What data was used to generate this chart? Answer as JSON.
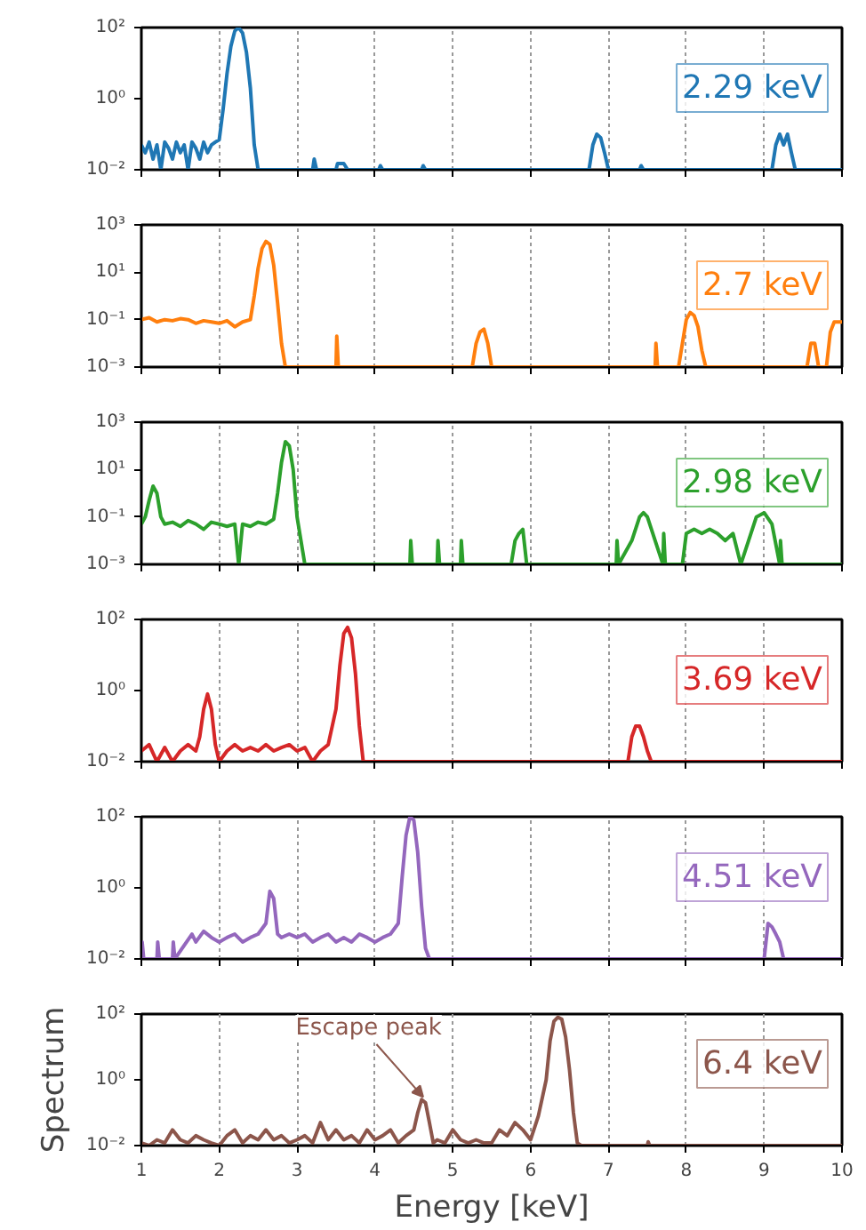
{
  "chart_data": [
    {
      "type": "line",
      "log": "y",
      "grid": "x",
      "tick_labels": "y",
      "xlim": [
        1,
        10
      ],
      "xticks": [
        1,
        2,
        3,
        4,
        5,
        6,
        7,
        8,
        9,
        10
      ],
      "ylim": [
        0.01,
        100
      ],
      "yticks": [
        {
          "value": 0.01,
          "label": "10⁻²"
        },
        {
          "value": 1,
          "label": "10⁰"
        },
        {
          "value": 100,
          "label": "10²"
        }
      ],
      "x": [
        1.0,
        1.05,
        1.1,
        1.15,
        1.2,
        1.25,
        1.3,
        1.35,
        1.4,
        1.45,
        1.5,
        1.55,
        1.6,
        1.65,
        1.7,
        1.75,
        1.8,
        1.85,
        1.9,
        1.95,
        2.0,
        2.05,
        2.1,
        2.15,
        2.2,
        2.25,
        2.3,
        2.35,
        2.4,
        2.45,
        2.5,
        3.2,
        3.22,
        3.25,
        3.5,
        3.52,
        3.6,
        3.65,
        4.05,
        4.07,
        4.1,
        4.6,
        4.62,
        4.65,
        6.75,
        6.8,
        6.85,
        6.9,
        6.95,
        7.0,
        7.4,
        7.42,
        7.45,
        9.1,
        9.15,
        9.2,
        9.25,
        9.3,
        9.35,
        9.4,
        10.0
      ],
      "series": [
        {
          "color": "#1f77b4",
          "values": [
            0.05,
            0.03,
            0.06,
            0.02,
            0.05,
            0.01,
            0.06,
            0.04,
            0.02,
            0.06,
            0.03,
            0.05,
            0.01,
            0.06,
            0.04,
            0.02,
            0.06,
            0.03,
            0.05,
            0.06,
            0.07,
            0.5,
            5,
            30,
            80,
            100,
            70,
            20,
            2,
            0.05,
            0.01,
            0.01,
            0.02,
            0.01,
            0.01,
            0.015,
            0.015,
            0.01,
            0.01,
            0.013,
            0.01,
            0.01,
            0.013,
            0.01,
            0.01,
            0.05,
            0.1,
            0.08,
            0.03,
            0.01,
            0.01,
            0.013,
            0.01,
            0.01,
            0.05,
            0.1,
            0.05,
            0.1,
            0.03,
            0.01,
            0.01
          ]
        }
      ],
      "annotations": [
        "2.29 keV"
      ]
    },
    {
      "type": "line",
      "log": "y",
      "grid": "x",
      "tick_labels": "y",
      "xlim": [
        1,
        10
      ],
      "xticks": [
        1,
        2,
        3,
        4,
        5,
        6,
        7,
        8,
        9,
        10
      ],
      "ylim": [
        0.001,
        1000
      ],
      "yticks": [
        {
          "value": 0.001,
          "label": "10⁻³"
        },
        {
          "value": 0.1,
          "label": "10⁻¹"
        },
        {
          "value": 10,
          "label": "10¹"
        },
        {
          "value": 1000,
          "label": "10³"
        }
      ],
      "x": [
        1.0,
        1.1,
        1.2,
        1.3,
        1.4,
        1.5,
        1.6,
        1.7,
        1.8,
        1.9,
        2.0,
        2.1,
        2.2,
        2.3,
        2.4,
        2.45,
        2.5,
        2.55,
        2.6,
        2.65,
        2.7,
        2.75,
        2.8,
        2.85,
        3.5,
        3.51,
        3.53,
        5.25,
        5.3,
        5.35,
        5.4,
        5.45,
        5.5,
        7.6,
        7.61,
        7.63,
        7.9,
        7.95,
        8.0,
        8.05,
        8.1,
        8.15,
        8.2,
        8.25,
        9.55,
        9.6,
        9.65,
        9.7,
        9.8,
        9.85,
        9.9,
        10.0
      ],
      "series": [
        {
          "color": "#ff7f0e",
          "values": [
            0.1,
            0.12,
            0.08,
            0.1,
            0.09,
            0.11,
            0.1,
            0.07,
            0.09,
            0.08,
            0.07,
            0.09,
            0.05,
            0.08,
            0.1,
            1,
            15,
            100,
            200,
            150,
            20,
            0.5,
            0.01,
            0.001,
            0.001,
            0.02,
            0.001,
            0.001,
            0.01,
            0.03,
            0.04,
            0.01,
            0.001,
            0.001,
            0.01,
            0.001,
            0.001,
            0.01,
            0.1,
            0.2,
            0.15,
            0.05,
            0.005,
            0.001,
            0.001,
            0.01,
            0.01,
            0.001,
            0.001,
            0.03,
            0.08,
            0.08
          ]
        }
      ],
      "annotations": [
        "2.7 keV"
      ]
    },
    {
      "type": "line",
      "log": "y",
      "grid": "x",
      "tick_labels": "y",
      "xlim": [
        1,
        10
      ],
      "xticks": [
        1,
        2,
        3,
        4,
        5,
        6,
        7,
        8,
        9,
        10
      ],
      "ylim": [
        0.001,
        1000
      ],
      "yticks": [
        {
          "value": 0.001,
          "label": "10⁻³"
        },
        {
          "value": 0.1,
          "label": "10⁻¹"
        },
        {
          "value": 10,
          "label": "10¹"
        },
        {
          "value": 1000,
          "label": "10³"
        }
      ],
      "x": [
        1.0,
        1.05,
        1.1,
        1.15,
        1.2,
        1.25,
        1.3,
        1.4,
        1.5,
        1.6,
        1.7,
        1.8,
        1.9,
        2.0,
        2.1,
        2.2,
        2.25,
        2.3,
        2.4,
        2.5,
        2.6,
        2.7,
        2.75,
        2.8,
        2.85,
        2.9,
        2.95,
        3.0,
        3.05,
        3.1,
        4.45,
        4.46,
        4.48,
        4.8,
        4.81,
        4.83,
        5.1,
        5.11,
        5.13,
        5.75,
        5.8,
        5.85,
        5.9,
        5.95,
        7.1,
        7.11,
        7.13,
        7.3,
        7.4,
        7.45,
        7.5,
        7.6,
        7.7,
        7.71,
        7.73,
        7.95,
        8.0,
        8.1,
        8.2,
        8.3,
        8.4,
        8.5,
        8.6,
        8.7,
        8.8,
        8.9,
        9.0,
        9.1,
        9.2,
        9.21,
        9.23,
        10.0
      ],
      "series": [
        {
          "color": "#2ca02c",
          "values": [
            0.05,
            0.1,
            0.5,
            2,
            1,
            0.1,
            0.05,
            0.06,
            0.04,
            0.07,
            0.05,
            0.03,
            0.06,
            0.05,
            0.04,
            0.05,
            0.001,
            0.05,
            0.04,
            0.06,
            0.05,
            0.08,
            1,
            20,
            150,
            100,
            10,
            0.1,
            0.01,
            0.001,
            0.001,
            0.01,
            0.001,
            0.001,
            0.01,
            0.001,
            0.001,
            0.01,
            0.001,
            0.001,
            0.01,
            0.02,
            0.03,
            0.001,
            0.001,
            0.01,
            0.001,
            0.01,
            0.1,
            0.15,
            0.1,
            0.01,
            0.001,
            0.02,
            0.001,
            0.001,
            0.02,
            0.03,
            0.02,
            0.03,
            0.02,
            0.01,
            0.02,
            0.001,
            0.01,
            0.1,
            0.15,
            0.05,
            0.001,
            0.01,
            0.001,
            0.001
          ]
        }
      ],
      "annotations": [
        "2.98 keV"
      ]
    },
    {
      "type": "line",
      "log": "y",
      "grid": "x",
      "tick_labels": "y",
      "xlim": [
        1,
        10
      ],
      "xticks": [
        1,
        2,
        3,
        4,
        5,
        6,
        7,
        8,
        9,
        10
      ],
      "ylim": [
        0.01,
        100
      ],
      "yticks": [
        {
          "value": 0.01,
          "label": "10⁻²"
        },
        {
          "value": 1,
          "label": "10⁰"
        },
        {
          "value": 100,
          "label": "10²"
        }
      ],
      "x": [
        1.0,
        1.1,
        1.2,
        1.3,
        1.4,
        1.5,
        1.6,
        1.7,
        1.75,
        1.8,
        1.85,
        1.9,
        1.95,
        2.0,
        2.1,
        2.2,
        2.3,
        2.4,
        2.5,
        2.6,
        2.7,
        2.8,
        2.9,
        3.0,
        3.1,
        3.2,
        3.3,
        3.4,
        3.5,
        3.55,
        3.6,
        3.65,
        3.7,
        3.75,
        3.8,
        3.85,
        3.95,
        7.25,
        7.3,
        7.35,
        7.4,
        7.45,
        7.5,
        7.55,
        10.0
      ],
      "series": [
        {
          "color": "#d62728",
          "values": [
            0.02,
            0.03,
            0.01,
            0.025,
            0.01,
            0.02,
            0.03,
            0.02,
            0.05,
            0.3,
            0.8,
            0.3,
            0.03,
            0.01,
            0.02,
            0.03,
            0.02,
            0.025,
            0.02,
            0.03,
            0.02,
            0.025,
            0.03,
            0.02,
            0.025,
            0.01,
            0.02,
            0.03,
            0.3,
            5,
            40,
            60,
            30,
            3,
            0.1,
            0.01,
            0.01,
            0.01,
            0.05,
            0.1,
            0.1,
            0.05,
            0.02,
            0.01,
            0.01
          ]
        }
      ],
      "annotations": [
        "3.69 keV"
      ]
    },
    {
      "type": "line",
      "log": "y",
      "grid": "x",
      "tick_labels": "y",
      "xlim": [
        1,
        10
      ],
      "xticks": [
        1,
        2,
        3,
        4,
        5,
        6,
        7,
        8,
        9,
        10
      ],
      "ylim": [
        0.01,
        100
      ],
      "yticks": [
        {
          "value": 0.01,
          "label": "10⁻²"
        },
        {
          "value": 1,
          "label": "10⁰"
        },
        {
          "value": 100,
          "label": "10²"
        }
      ],
      "x": [
        1.0,
        1.01,
        1.03,
        1.2,
        1.21,
        1.23,
        1.4,
        1.41,
        1.43,
        1.65,
        1.7,
        1.8,
        1.9,
        2.0,
        2.1,
        2.2,
        2.3,
        2.4,
        2.5,
        2.6,
        2.65,
        2.7,
        2.75,
        2.8,
        2.9,
        3.0,
        3.1,
        3.2,
        3.3,
        3.4,
        3.5,
        3.6,
        3.7,
        3.8,
        3.9,
        4.0,
        4.1,
        4.2,
        4.3,
        4.35,
        4.4,
        4.45,
        4.5,
        4.55,
        4.6,
        4.65,
        4.7,
        9.0,
        9.05,
        9.1,
        9.15,
        9.2,
        9.25,
        10.0
      ],
      "series": [
        {
          "color": "#9467bd",
          "values": [
            0.01,
            0.03,
            0.01,
            0.01,
            0.03,
            0.01,
            0.01,
            0.03,
            0.01,
            0.05,
            0.03,
            0.06,
            0.04,
            0.03,
            0.04,
            0.05,
            0.03,
            0.04,
            0.05,
            0.1,
            0.8,
            0.5,
            0.05,
            0.04,
            0.05,
            0.04,
            0.05,
            0.03,
            0.04,
            0.05,
            0.03,
            0.04,
            0.03,
            0.05,
            0.04,
            0.03,
            0.04,
            0.05,
            0.1,
            2,
            30,
            100,
            80,
            10,
            0.3,
            0.02,
            0.01,
            0.01,
            0.1,
            0.08,
            0.05,
            0.03,
            0.01,
            0.01
          ]
        }
      ],
      "annotations": [
        "4.51 keV"
      ]
    },
    {
      "type": "line",
      "log": "y",
      "grid": "x",
      "xlim": [
        1,
        10
      ],
      "xticks": [
        1,
        2,
        3,
        4,
        5,
        6,
        7,
        8,
        9,
        10
      ],
      "ylim": [
        0.01,
        100
      ],
      "yticks": [
        {
          "value": 0.01,
          "label": "10⁻²"
        },
        {
          "value": 1,
          "label": "10⁰"
        },
        {
          "value": 100,
          "label": "10²"
        }
      ],
      "xlabel": "Energy [keV]",
      "ylabel": "Spectrum",
      "x": [
        1.0,
        1.1,
        1.2,
        1.3,
        1.4,
        1.5,
        1.6,
        1.7,
        1.8,
        1.9,
        2.0,
        2.1,
        2.2,
        2.3,
        2.4,
        2.5,
        2.6,
        2.7,
        2.8,
        2.9,
        3.0,
        3.1,
        3.2,
        3.3,
        3.4,
        3.5,
        3.6,
        3.7,
        3.8,
        3.9,
        4.0,
        4.1,
        4.2,
        4.3,
        4.4,
        4.5,
        4.55,
        4.6,
        4.65,
        4.7,
        4.75,
        4.8,
        4.9,
        5.0,
        5.1,
        5.2,
        5.3,
        5.4,
        5.5,
        5.6,
        5.7,
        5.8,
        5.9,
        6.0,
        6.1,
        6.2,
        6.25,
        6.3,
        6.35,
        6.4,
        6.45,
        6.5,
        6.55,
        6.6,
        6.65,
        7.5,
        7.51,
        7.53,
        10.0
      ],
      "series": [
        {
          "color": "#8c564b",
          "values": [
            0.012,
            0.01,
            0.015,
            0.012,
            0.03,
            0.015,
            0.012,
            0.02,
            0.015,
            0.012,
            0.01,
            0.02,
            0.03,
            0.012,
            0.02,
            0.015,
            0.03,
            0.015,
            0.02,
            0.012,
            0.015,
            0.02,
            0.012,
            0.05,
            0.015,
            0.03,
            0.015,
            0.02,
            0.012,
            0.03,
            0.015,
            0.02,
            0.03,
            0.012,
            0.02,
            0.03,
            0.1,
            0.25,
            0.2,
            0.05,
            0.012,
            0.015,
            0.012,
            0.03,
            0.015,
            0.012,
            0.015,
            0.012,
            0.012,
            0.03,
            0.02,
            0.05,
            0.03,
            0.015,
            0.08,
            1,
            15,
            60,
            80,
            70,
            20,
            2,
            0.1,
            0.012,
            0.01,
            0.01,
            0.013,
            0.01,
            0.01
          ]
        }
      ],
      "annotations": [
        {
          "text": "Escape peak",
          "x": 4.62,
          "y": 0.3
        },
        "6.4 keV"
      ]
    }
  ]
}
